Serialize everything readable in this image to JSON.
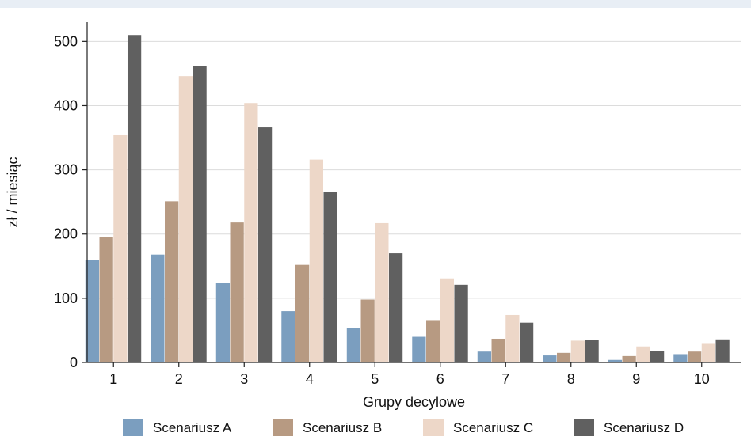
{
  "chart_data": {
    "type": "bar",
    "title": "",
    "xlabel": "Grupy decylowe",
    "ylabel": "zł / miesiąc",
    "ylim": [
      0,
      530
    ],
    "yticks": [
      0,
      100,
      200,
      300,
      400,
      500
    ],
    "grid": "horizontal",
    "legend_position": "bottom",
    "categories": [
      "1",
      "2",
      "3",
      "4",
      "5",
      "6",
      "7",
      "8",
      "9",
      "10"
    ],
    "series": [
      {
        "name": "Scenariusz A",
        "color": "#7b9ebf",
        "values": [
          160,
          168,
          124,
          80,
          53,
          40,
          17,
          11,
          4,
          13
        ]
      },
      {
        "name": "Scenariusz B",
        "color": "#b79a82",
        "values": [
          195,
          251,
          218,
          152,
          98,
          66,
          37,
          15,
          10,
          17
        ]
      },
      {
        "name": "Scenariusz C",
        "color": "#edd7c8",
        "values": [
          355,
          446,
          404,
          316,
          217,
          131,
          74,
          34,
          25,
          29
        ]
      },
      {
        "name": "Scenariusz D",
        "color": "#606060",
        "values": [
          510,
          462,
          366,
          266,
          170,
          121,
          62,
          35,
          18,
          36
        ]
      }
    ]
  }
}
